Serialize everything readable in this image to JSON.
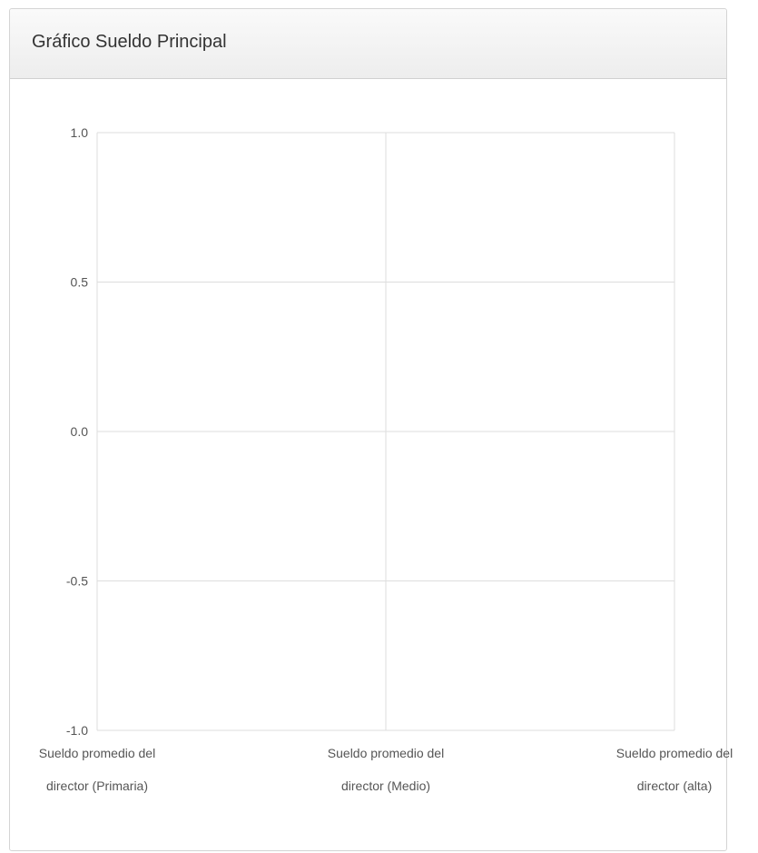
{
  "panel": {
    "title": "Gráfico Sueldo Principal"
  },
  "chart_data": {
    "type": "bar",
    "title": "",
    "xlabel": "",
    "ylabel": "",
    "categories": [
      [
        "Sueldo promedio del",
        "director (Primaria)"
      ],
      [
        "Sueldo promedio del",
        "director (Medio)"
      ],
      [
        "Sueldo promedio del",
        "director (alta)"
      ]
    ],
    "series": [],
    "yticks": [
      "1.0",
      "0.5",
      "0.0",
      "-0.5",
      "-1.0"
    ],
    "ylim": [
      -1.0,
      1.0
    ],
    "grid": true,
    "colors": {
      "grid": "#dddddd",
      "tick_text": "#555555"
    }
  }
}
